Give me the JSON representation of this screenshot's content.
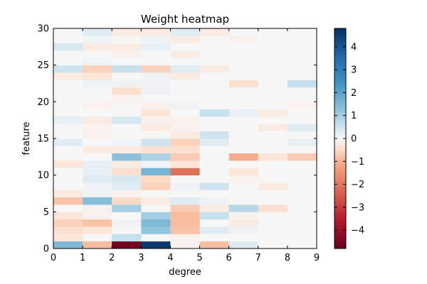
{
  "chart_data": {
    "type": "heatmap",
    "title": "Weight heatmap",
    "xlabel": "degree",
    "ylabel": "feature",
    "xlim": [
      0,
      9
    ],
    "ylim": [
      0,
      30
    ],
    "x_ticks": [
      "0",
      "1",
      "2",
      "3",
      "4",
      "5",
      "6",
      "7",
      "8",
      "9"
    ],
    "y_ticks": [
      "0",
      "5",
      "10",
      "15",
      "20",
      "25",
      "30"
    ],
    "colorbar": {
      "range": [
        -4.8,
        4.8
      ],
      "ticks": [
        "4",
        "3",
        "2",
        "1",
        "0",
        "−1",
        "−2",
        "−3",
        "−4"
      ],
      "tick_values": [
        4,
        3,
        2,
        1,
        0,
        -1,
        -2,
        -3,
        -4
      ],
      "colormap": "RdBu"
    },
    "grid": false,
    "rows_bottom_to_top": [
      [
        1.5,
        -0.9,
        -4.6,
        4.6,
        -0.1,
        -0.9,
        0.3,
        0.0,
        0.0
      ],
      [
        -0.3,
        0.0,
        0.6,
        0.0,
        -0.1,
        0.0,
        0.0,
        0.0,
        0.0
      ],
      [
        -0.4,
        -0.3,
        0.0,
        1.2,
        -0.8,
        0.3,
        0.1,
        0.0,
        0.0
      ],
      [
        -0.6,
        -0.8,
        0.1,
        1.5,
        -0.9,
        0.0,
        -0.2,
        0.0,
        0.0
      ],
      [
        -0.3,
        -0.1,
        0.0,
        1.0,
        -0.9,
        0.6,
        -0.1,
        0.0,
        0.0
      ],
      [
        0.0,
        -0.1,
        1.0,
        0.0,
        -0.7,
        -0.2,
        0.8,
        -0.4,
        0.0
      ],
      [
        -0.8,
        1.4,
        -0.5,
        -0.2,
        0.3,
        0.1,
        0.0,
        0.0,
        0.0
      ],
      [
        -0.2,
        0.1,
        -0.1,
        0.0,
        0.0,
        0.0,
        0.0,
        0.0,
        0.0
      ],
      [
        0.0,
        0.1,
        0.3,
        -0.6,
        0.1,
        0.5,
        0.0,
        -0.2,
        0.0
      ],
      [
        0.0,
        0.3,
        0.4,
        -0.5,
        0.0,
        0.0,
        -0.1,
        0.0,
        0.0
      ],
      [
        0.0,
        0.2,
        -0.4,
        1.6,
        -2.1,
        0.0,
        -0.3,
        0.0,
        0.0
      ],
      [
        -0.3,
        0.2,
        -0.2,
        0.1,
        -0.3,
        0.0,
        0.0,
        0.0,
        0.0
      ],
      [
        0.0,
        0.0,
        1.3,
        0.9,
        -0.7,
        0.0,
        -1.1,
        -0.3,
        -0.7
      ],
      [
        0.0,
        -0.2,
        -0.2,
        -0.4,
        -0.4,
        0.0,
        0.0,
        0.0,
        0.0
      ],
      [
        0.3,
        0.0,
        0.1,
        0.5,
        -0.6,
        0.3,
        0.0,
        0.0,
        0.2
      ],
      [
        0.0,
        -0.1,
        0.0,
        0.0,
        -0.2,
        0.5,
        0.0,
        0.0,
        0.0
      ],
      [
        0.0,
        -0.1,
        0.0,
        -0.2,
        -0.1,
        0.0,
        0.0,
        -0.2,
        0.3
      ],
      [
        0.2,
        -0.2,
        0.4,
        -0.1,
        -0.1,
        0.0,
        0.0,
        0.0,
        0.0
      ],
      [
        0.0,
        0.0,
        0.0,
        -0.3,
        0.0,
        0.6,
        0.2,
        -0.2,
        0.0
      ],
      [
        0.0,
        -0.1,
        0.0,
        -0.1,
        0.1,
        0.0,
        0.0,
        0.0,
        -0.1
      ],
      [
        0.0,
        0.0,
        -0.1,
        0.0,
        0.0,
        0.0,
        0.0,
        0.0,
        0.0
      ],
      [
        0.0,
        0.0,
        -0.4,
        0.1,
        0.0,
        0.0,
        0.0,
        0.0,
        0.0
      ],
      [
        0.0,
        0.1,
        0.1,
        0.1,
        0.0,
        0.0,
        -0.4,
        0.0,
        0.6
      ],
      [
        -0.2,
        -0.3,
        0.0,
        0.1,
        -0.2,
        0.0,
        0.0,
        0.0,
        0.0
      ],
      [
        0.5,
        -0.6,
        0.6,
        -0.6,
        0.3,
        -0.2,
        0.0,
        0.0,
        0.0
      ],
      [
        0.0,
        0.1,
        0.0,
        0.0,
        0.0,
        0.0,
        0.0,
        0.0,
        0.0
      ],
      [
        0.0,
        0.0,
        -0.1,
        0.0,
        -0.2,
        0.0,
        0.0,
        0.0,
        0.0
      ],
      [
        0.4,
        -0.2,
        -0.2,
        0.2,
        0.0,
        0.0,
        0.0,
        0.0,
        0.0
      ],
      [
        0.0,
        0.1,
        0.0,
        0.1,
        -0.2,
        0.0,
        -0.1,
        0.0,
        0.0
      ],
      [
        0.0,
        0.3,
        -0.2,
        -0.2,
        0.3,
        -0.2,
        0.0,
        0.0,
        0.0
      ]
    ]
  }
}
